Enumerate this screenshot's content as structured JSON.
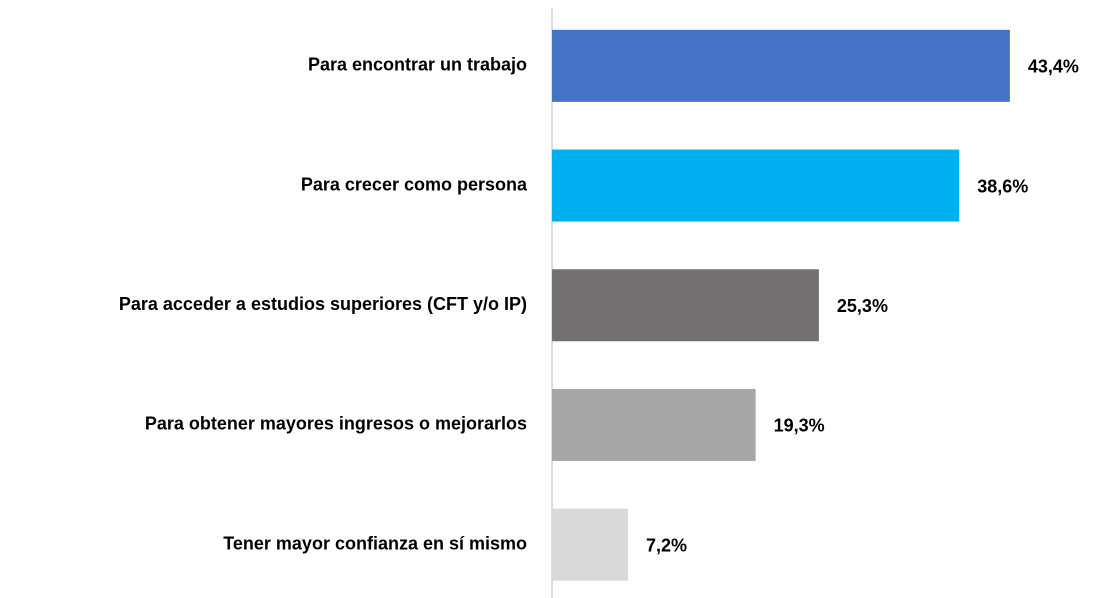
{
  "chart_data": {
    "type": "bar",
    "orientation": "horizontal",
    "categories": [
      "Para encontrar un trabajo",
      "Para crecer como persona",
      "Para acceder a estudios superiores (CFT y/o IP)",
      "Para obtener mayores ingresos o mejorarlos",
      "Tener mayor confianza en sí mismo"
    ],
    "values": [
      43.4,
      38.6,
      25.3,
      19.3,
      7.2
    ],
    "value_labels": [
      "43,4%",
      "38,6%",
      "25,3%",
      "19,3%",
      "7,2%"
    ],
    "colors": [
      "#4472c4",
      "#00b0f0",
      "#767171",
      "#a6a6a6",
      "#d9d9d9"
    ]
  }
}
